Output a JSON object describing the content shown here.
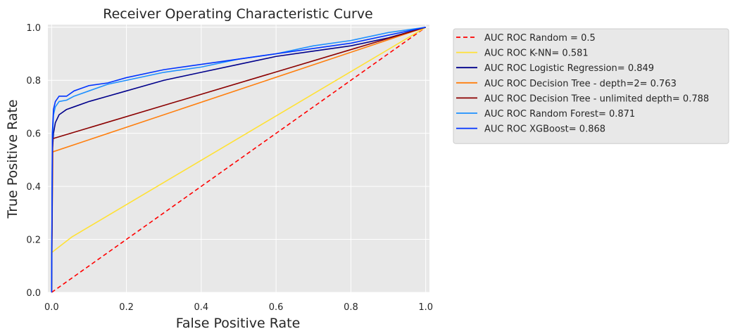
{
  "chart_data": {
    "type": "line",
    "title": "Receiver Operating Characteristic Curve",
    "xlabel": "False Positive Rate",
    "ylabel": "True Positive Rate",
    "xlim": [
      -0.01,
      1.01
    ],
    "ylim": [
      0.0,
      1.01
    ],
    "x_ticks": [
      "0.0",
      "0.2",
      "0.4",
      "0.6",
      "0.8",
      "1.0"
    ],
    "y_ticks": [
      "0.0",
      "0.2",
      "0.4",
      "0.6",
      "0.8",
      "1.0"
    ],
    "grid": true,
    "background": "#e8e8e8",
    "legend_position": "outside-right-top",
    "series": [
      {
        "name": "AUC ROC Random = 0.5",
        "color": "#ff0000",
        "dashed": true,
        "x": [
          0,
          1
        ],
        "y": [
          0,
          1
        ]
      },
      {
        "name": "AUC ROC K-NN= 0.581",
        "color": "#ffe135",
        "dashed": false,
        "x": [
          0,
          0.0,
          0.055,
          1.0
        ],
        "y": [
          0,
          0.15,
          0.21,
          1.0
        ]
      },
      {
        "name": "AUC ROC Logistic Regression= 0.849",
        "color": "#00008b",
        "dashed": false,
        "x": [
          0,
          0.002,
          0.005,
          0.01,
          0.02,
          0.04,
          0.06,
          0.1,
          0.15,
          0.2,
          0.3,
          0.4,
          0.5,
          0.6,
          0.7,
          0.8,
          0.9,
          1.0
        ],
        "y": [
          0,
          0.53,
          0.6,
          0.64,
          0.67,
          0.69,
          0.7,
          0.72,
          0.74,
          0.76,
          0.8,
          0.83,
          0.86,
          0.89,
          0.91,
          0.93,
          0.96,
          1.0
        ]
      },
      {
        "name": "AUC ROC Decision Tree - depth=2= 0.763",
        "color": "#ff7f0e",
        "dashed": false,
        "x": [
          0,
          0.003,
          1.0
        ],
        "y": [
          0,
          0.53,
          1.0
        ]
      },
      {
        "name": "AUC ROC Decision Tree - unlimited depth= 0.788",
        "color": "#8b0000",
        "dashed": false,
        "x": [
          0,
          0.003,
          1.0
        ],
        "y": [
          0,
          0.58,
          1.0
        ]
      },
      {
        "name": "AUC ROC Random Forest= 0.871",
        "color": "#1e90ff",
        "dashed": false,
        "x": [
          0,
          0.002,
          0.005,
          0.01,
          0.02,
          0.04,
          0.06,
          0.1,
          0.15,
          0.2,
          0.3,
          0.4,
          0.5,
          0.6,
          0.7,
          0.8,
          0.9,
          1.0
        ],
        "y": [
          0,
          0.57,
          0.67,
          0.7,
          0.72,
          0.725,
          0.74,
          0.76,
          0.785,
          0.8,
          0.83,
          0.85,
          0.88,
          0.9,
          0.93,
          0.95,
          0.98,
          1.0
        ]
      },
      {
        "name": "AUC ROC XGBoost= 0.868",
        "color": "#0033ff",
        "dashed": false,
        "x": [
          0,
          0.002,
          0.005,
          0.01,
          0.02,
          0.04,
          0.06,
          0.1,
          0.15,
          0.2,
          0.3,
          0.4,
          0.5,
          0.6,
          0.7,
          0.8,
          0.9,
          1.0
        ],
        "y": [
          0,
          0.6,
          0.69,
          0.72,
          0.74,
          0.74,
          0.76,
          0.78,
          0.79,
          0.81,
          0.84,
          0.86,
          0.88,
          0.9,
          0.92,
          0.94,
          0.97,
          1.0
        ]
      }
    ]
  }
}
